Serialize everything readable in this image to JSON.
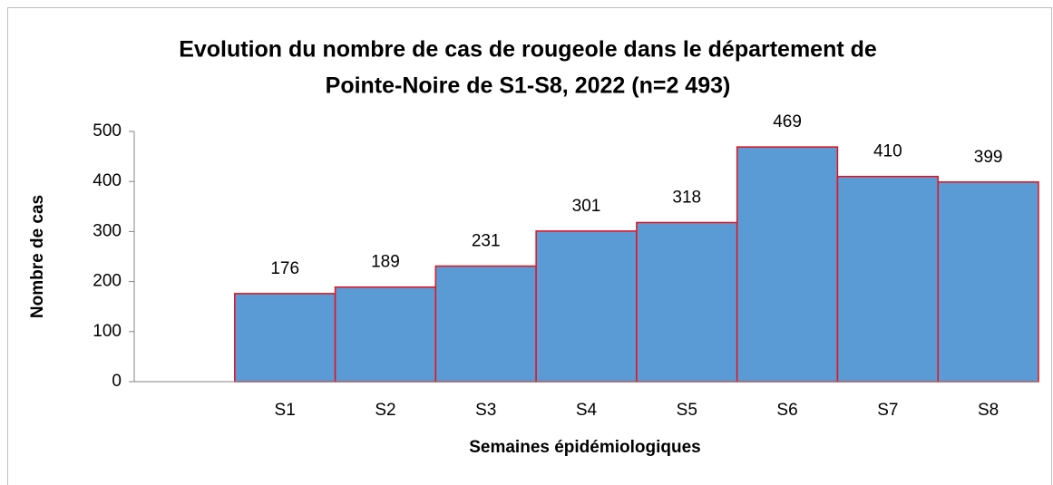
{
  "chart_data": {
    "type": "bar",
    "title": [
      "Evolution du nombre de cas de rougeole dans le département de",
      "Pointe-Noire de S1-S8, 2022 (n=2 493)"
    ],
    "x_label": "Semaines épidémiologiques",
    "y_label": "Nombre de cas",
    "categories": [
      null,
      "S1",
      "S2",
      "S3",
      "S4",
      "S5",
      "S6",
      "S7",
      "S8"
    ],
    "values": [
      null,
      176,
      189,
      231,
      301,
      318,
      469,
      410,
      399
    ],
    "color": "#5b9bd5",
    "edge_color": "#e8101a",
    "ylim": [
      0,
      500
    ],
    "yticks": [
      0,
      100,
      200,
      300,
      400,
      500
    ],
    "grid": false
  }
}
